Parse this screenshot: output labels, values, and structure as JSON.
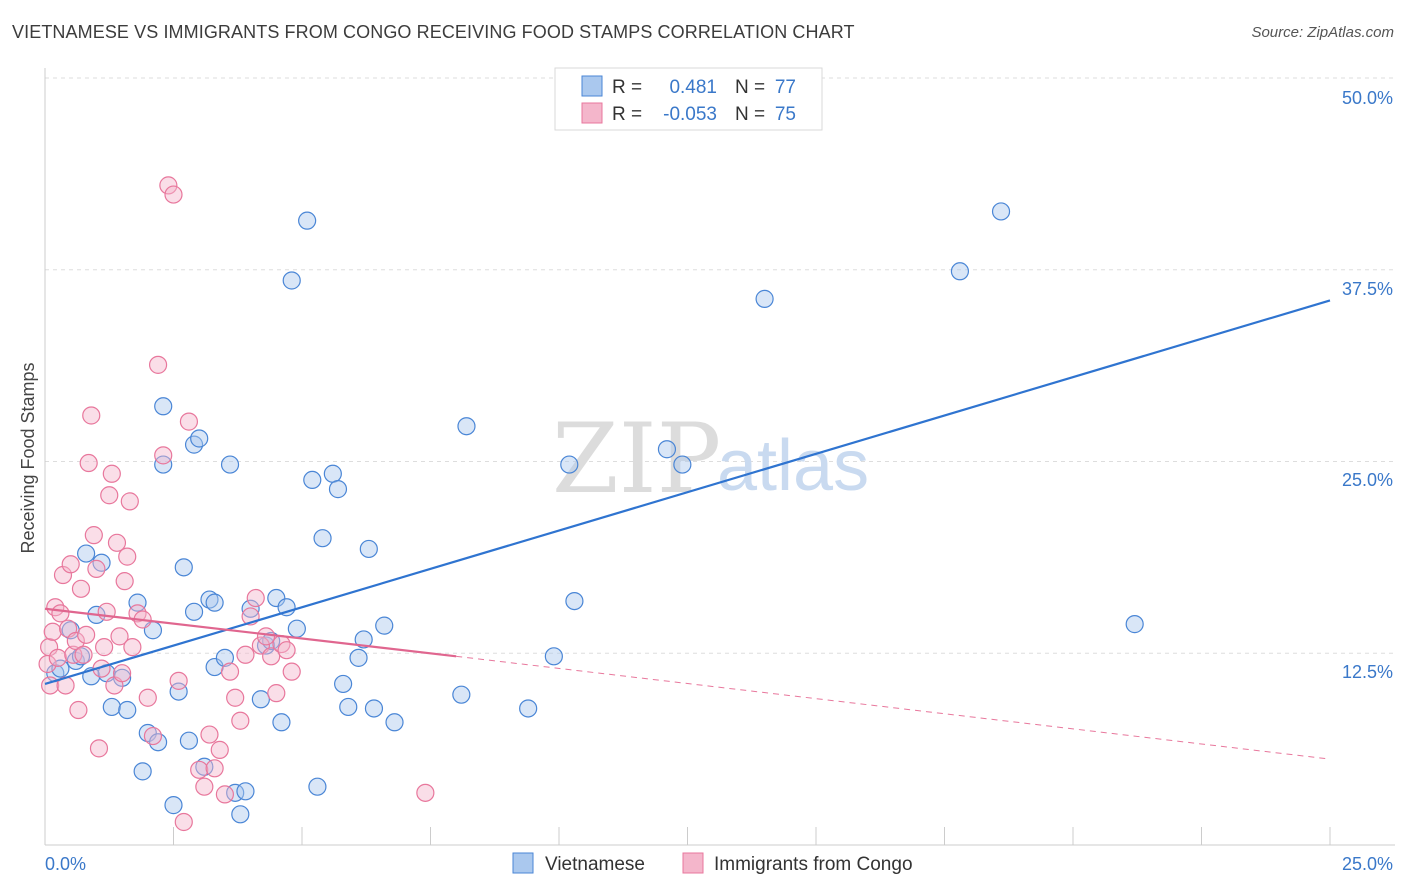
{
  "title": "VIETNAMESE VS IMMIGRANTS FROM CONGO RECEIVING FOOD STAMPS CORRELATION CHART",
  "source": "Source: ZipAtlas.com",
  "watermark": {
    "part1": "ZIP",
    "part2": "atlas"
  },
  "legend": {
    "rows": [
      {
        "r_label": "R =",
        "r_value": "0.481",
        "n_label": "N =",
        "n_value": "77"
      },
      {
        "r_label": "R =",
        "r_value": "-0.053",
        "n_label": "N =",
        "n_value": "75"
      }
    ]
  },
  "colors": {
    "blue": "#4a86d6",
    "blue_fill": "#aac8ee",
    "pink": "#e8779c",
    "pink_fill": "#f4b6cb",
    "tick": "#3a78c9"
  },
  "chart_data": {
    "type": "scatter",
    "title": "VIETNAMESE VS IMMIGRANTS FROM CONGO RECEIVING FOOD STAMPS CORRELATION CHART",
    "xlabel": "",
    "ylabel": "Receiving Food Stamps",
    "xlim": [
      0,
      25
    ],
    "ylim": [
      0,
      50
    ],
    "x_tick_labels": [
      "0.0%",
      "25.0%"
    ],
    "y_tick_labels": [
      "12.5%",
      "25.0%",
      "37.5%",
      "50.0%"
    ],
    "y_ticks": [
      12.5,
      25,
      37.5,
      50
    ],
    "series": [
      {
        "name": "Vietnamese",
        "r": 0.481,
        "n": 77,
        "trend": {
          "x": [
            0,
            25
          ],
          "y": [
            10.5,
            35.5
          ]
        },
        "points": [
          [
            0.2,
            11.2
          ],
          [
            0.3,
            11.5
          ],
          [
            0.5,
            14.0
          ],
          [
            0.6,
            12.0
          ],
          [
            0.7,
            12.3
          ],
          [
            0.8,
            19.0
          ],
          [
            0.9,
            11.0
          ],
          [
            1.0,
            15.0
          ],
          [
            1.1,
            18.4
          ],
          [
            1.2,
            11.2
          ],
          [
            1.3,
            9.0
          ],
          [
            1.5,
            10.9
          ],
          [
            1.6,
            8.8
          ],
          [
            1.8,
            15.8
          ],
          [
            1.9,
            4.8
          ],
          [
            2.0,
            7.3
          ],
          [
            2.1,
            14.0
          ],
          [
            2.2,
            6.7
          ],
          [
            2.3,
            24.8
          ],
          [
            2.3,
            28.6
          ],
          [
            2.5,
            2.6
          ],
          [
            2.6,
            10.0
          ],
          [
            2.7,
            18.1
          ],
          [
            2.8,
            6.8
          ],
          [
            2.9,
            26.1
          ],
          [
            2.9,
            15.2
          ],
          [
            3.0,
            26.5
          ],
          [
            3.1,
            5.1
          ],
          [
            3.2,
            16.0
          ],
          [
            3.3,
            11.6
          ],
          [
            3.3,
            15.8
          ],
          [
            3.5,
            12.2
          ],
          [
            3.6,
            24.8
          ],
          [
            3.7,
            3.4
          ],
          [
            3.8,
            2.0
          ],
          [
            3.9,
            3.5
          ],
          [
            4.0,
            15.4
          ],
          [
            4.2,
            9.5
          ],
          [
            4.3,
            13.0
          ],
          [
            4.4,
            13.3
          ],
          [
            4.5,
            16.1
          ],
          [
            4.6,
            8.0
          ],
          [
            4.7,
            15.5
          ],
          [
            4.8,
            36.8
          ],
          [
            4.9,
            14.1
          ],
          [
            5.1,
            40.7
          ],
          [
            5.2,
            23.8
          ],
          [
            5.3,
            3.8
          ],
          [
            5.4,
            20.0
          ],
          [
            5.6,
            24.2
          ],
          [
            5.7,
            23.2
          ],
          [
            5.8,
            10.5
          ],
          [
            5.9,
            9.0
          ],
          [
            6.1,
            12.2
          ],
          [
            6.2,
            13.4
          ],
          [
            6.3,
            19.3
          ],
          [
            6.4,
            8.9
          ],
          [
            6.6,
            14.3
          ],
          [
            6.8,
            8.0
          ],
          [
            8.1,
            9.8
          ],
          [
            8.2,
            27.3
          ],
          [
            9.4,
            8.9
          ],
          [
            9.9,
            12.3
          ],
          [
            10.2,
            24.8
          ],
          [
            10.3,
            15.9
          ],
          [
            12.1,
            25.8
          ],
          [
            12.4,
            24.8
          ],
          [
            14.0,
            35.6
          ],
          [
            17.8,
            37.4
          ],
          [
            18.6,
            41.3
          ],
          [
            21.2,
            14.4
          ]
        ]
      },
      {
        "name": "Immigrants from Congo",
        "r": -0.053,
        "n": 75,
        "trend": {
          "x": [
            0,
            8
          ],
          "y": [
            15.4,
            12.3
          ]
        },
        "trend_dashed": {
          "x": [
            8,
            25
          ],
          "y": [
            12.3,
            5.6
          ]
        },
        "points": [
          [
            0.05,
            11.8
          ],
          [
            0.08,
            12.9
          ],
          [
            0.1,
            10.4
          ],
          [
            0.15,
            13.9
          ],
          [
            0.2,
            15.5
          ],
          [
            0.25,
            12.2
          ],
          [
            0.3,
            15.1
          ],
          [
            0.35,
            17.6
          ],
          [
            0.4,
            10.4
          ],
          [
            0.45,
            14.1
          ],
          [
            0.5,
            18.3
          ],
          [
            0.55,
            12.4
          ],
          [
            0.6,
            13.3
          ],
          [
            0.65,
            8.8
          ],
          [
            0.7,
            16.7
          ],
          [
            0.75,
            12.4
          ],
          [
            0.8,
            13.7
          ],
          [
            0.85,
            24.9
          ],
          [
            0.9,
            28.0
          ],
          [
            0.95,
            20.2
          ],
          [
            1.0,
            18.0
          ],
          [
            1.05,
            6.3
          ],
          [
            1.1,
            11.5
          ],
          [
            1.15,
            12.9
          ],
          [
            1.2,
            15.2
          ],
          [
            1.25,
            22.8
          ],
          [
            1.3,
            24.2
          ],
          [
            1.35,
            10.4
          ],
          [
            1.4,
            19.7
          ],
          [
            1.45,
            13.6
          ],
          [
            1.5,
            11.2
          ],
          [
            1.55,
            17.2
          ],
          [
            1.6,
            18.8
          ],
          [
            1.65,
            22.4
          ],
          [
            1.7,
            12.9
          ],
          [
            1.8,
            15.1
          ],
          [
            1.9,
            14.7
          ],
          [
            2.0,
            9.6
          ],
          [
            2.1,
            7.1
          ],
          [
            2.2,
            31.3
          ],
          [
            2.3,
            25.4
          ],
          [
            2.4,
            43.0
          ],
          [
            2.5,
            42.4
          ],
          [
            2.6,
            10.7
          ],
          [
            2.7,
            1.5
          ],
          [
            2.8,
            27.6
          ],
          [
            3.0,
            4.9
          ],
          [
            3.1,
            3.8
          ],
          [
            3.2,
            7.2
          ],
          [
            3.3,
            5.0
          ],
          [
            3.4,
            6.2
          ],
          [
            3.5,
            3.3
          ],
          [
            3.6,
            11.3
          ],
          [
            3.7,
            9.6
          ],
          [
            3.8,
            8.1
          ],
          [
            3.9,
            12.4
          ],
          [
            4.0,
            14.9
          ],
          [
            4.1,
            16.1
          ],
          [
            4.2,
            13.0
          ],
          [
            4.3,
            13.6
          ],
          [
            4.4,
            12.3
          ],
          [
            4.5,
            9.9
          ],
          [
            4.6,
            13.1
          ],
          [
            4.7,
            12.7
          ],
          [
            4.8,
            11.3
          ],
          [
            7.4,
            3.4
          ]
        ]
      }
    ]
  },
  "bottom_legend": [
    {
      "label": "Vietnamese"
    },
    {
      "label": "Immigrants from Congo"
    }
  ]
}
